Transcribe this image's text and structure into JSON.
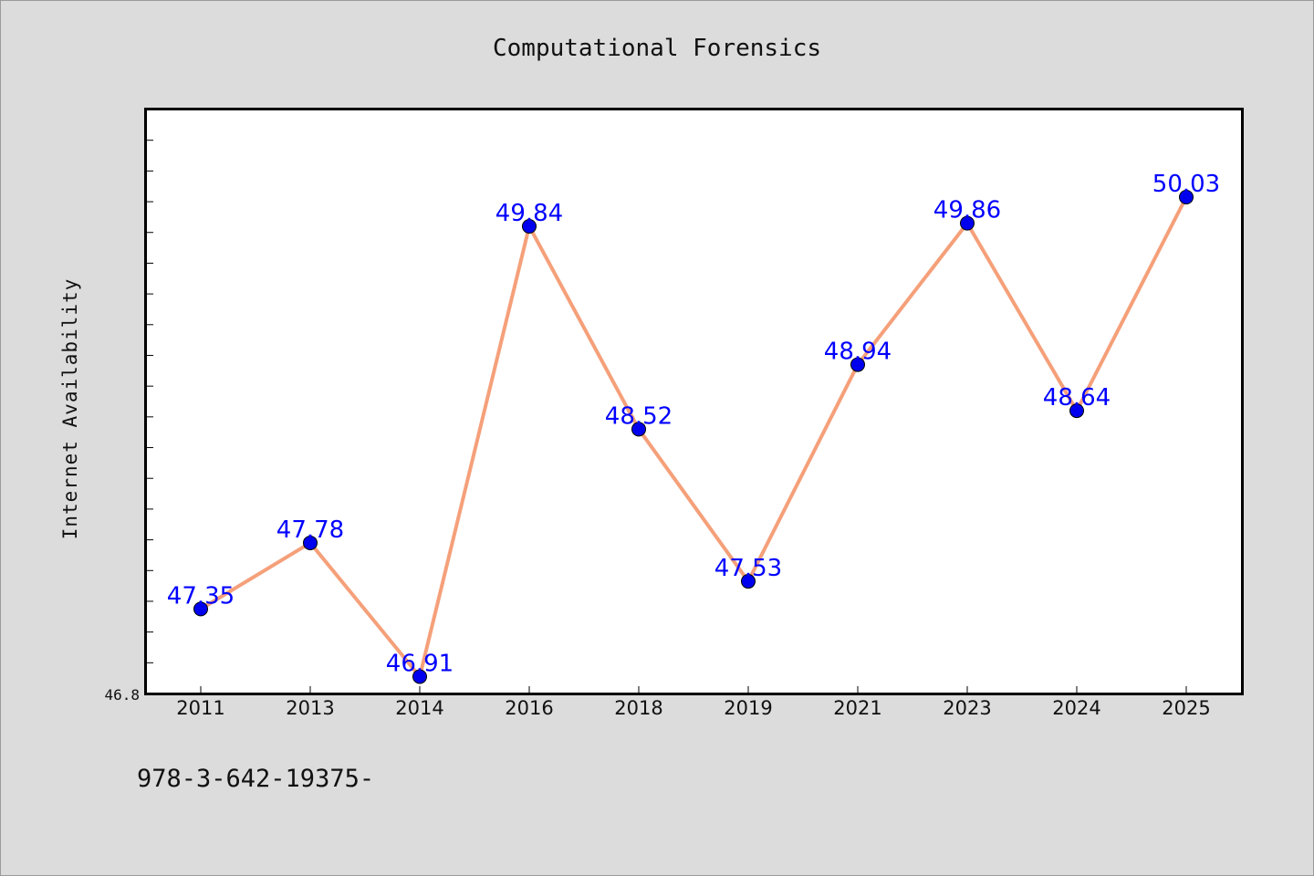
{
  "chart_data": {
    "type": "line",
    "title": "Computational Forensics",
    "xlabel": "",
    "ylabel": "Internet Availability",
    "categories": [
      "2011",
      "2013",
      "2014",
      "2016",
      "2018",
      "2019",
      "2021",
      "2023",
      "2024",
      "2025"
    ],
    "series": [
      {
        "values": [
          47.35,
          47.78,
          46.91,
          49.84,
          48.52,
          47.53,
          48.94,
          49.86,
          48.64,
          50.03
        ],
        "color": "#f5a07a",
        "marker_color": "#0000ee"
      }
    ],
    "data_labels": [
      "47.35",
      "47.78",
      "46.91",
      "49.84",
      "48.52",
      "47.53",
      "48.94",
      "49.86",
      "48.64",
      "50.03"
    ],
    "ylim": [
      46.8,
      50.6
    ],
    "ytick_labels": [
      "46.8"
    ],
    "grid": false,
    "legend": "none",
    "label_color": "#0000ff"
  },
  "footer_text": "978-3-642-19375-"
}
